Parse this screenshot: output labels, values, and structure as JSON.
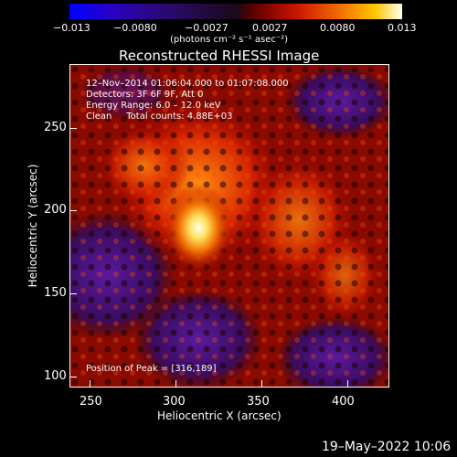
{
  "colorbar": {
    "ticks": [
      "−0.013",
      "−0.0080",
      "−0.0027",
      "0.0027",
      "0.0080",
      "0.013"
    ],
    "units": "(photons cm⁻² s⁻¹ asec⁻²)"
  },
  "title": "Reconstructed RHESSI Image",
  "info": {
    "line1": "12–Nov–2014 01:06:04.000 to 01:07:08.000",
    "line2": "Detectors: 3F 6F 9F, Att 0",
    "line3": "Energy Range: 6.0 – 12.0 keV",
    "line4": "Clean     Total counts: 4.88E+03"
  },
  "peak": "Position of Peak = [316,189]",
  "axes": {
    "xlabel": "Heliocentric X (arcsec)",
    "ylabel": "Heliocentric Y (arcsec)",
    "xticks": [
      "250",
      "300",
      "350",
      "400"
    ],
    "yticks": [
      "250",
      "200",
      "150",
      "100"
    ]
  },
  "timestamp": "19–May–2022 10:06",
  "colors": {
    "background": "#000000",
    "foreground": "#ffffff"
  }
}
